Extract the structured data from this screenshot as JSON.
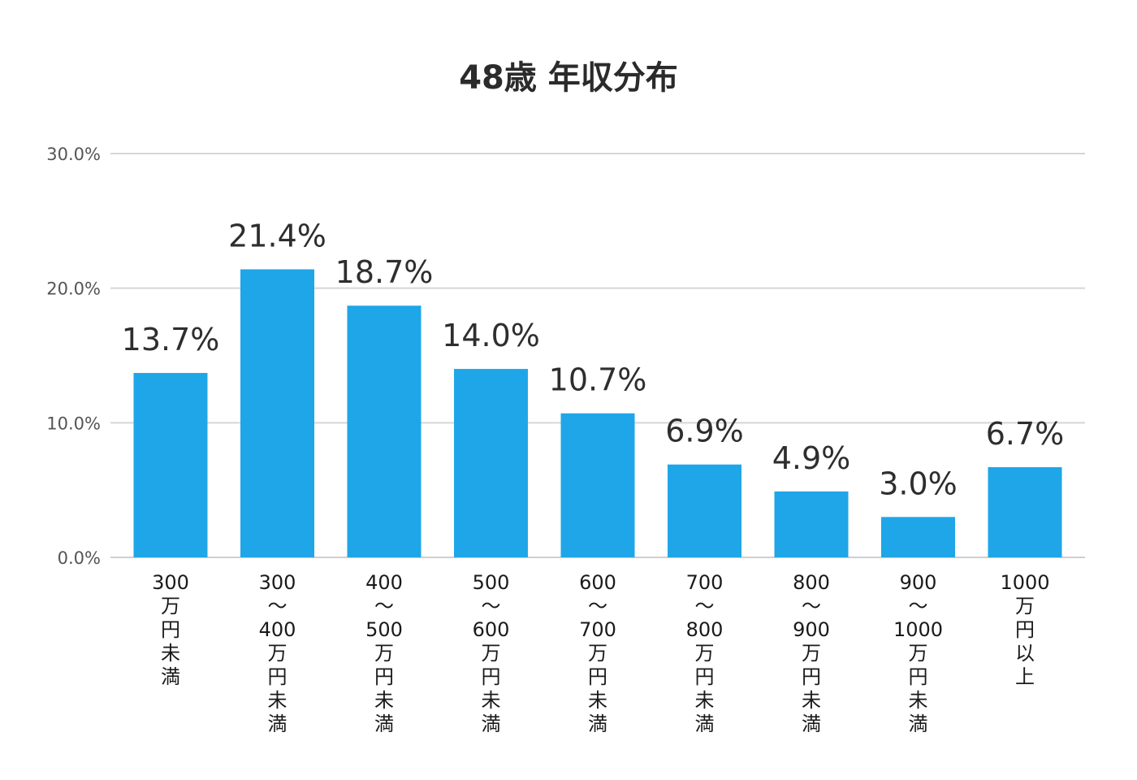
{
  "chart_data": {
    "type": "bar",
    "title": "48歳 年収分布",
    "categories": [
      [
        "300",
        "万",
        "円",
        "未",
        "満"
      ],
      [
        "300",
        "〜",
        "400",
        "万",
        "円",
        "未",
        "満"
      ],
      [
        "400",
        "〜",
        "500",
        "万",
        "円",
        "未",
        "満"
      ],
      [
        "500",
        "〜",
        "600",
        "万",
        "円",
        "未",
        "満"
      ],
      [
        "600",
        "〜",
        "700",
        "万",
        "円",
        "未",
        "満"
      ],
      [
        "700",
        "〜",
        "800",
        "万",
        "円",
        "未",
        "満"
      ],
      [
        "800",
        "〜",
        "900",
        "万",
        "円",
        "未",
        "満"
      ],
      [
        "900",
        "〜",
        "1000",
        "万",
        "円",
        "未",
        "満"
      ],
      [
        "1000",
        "万",
        "円",
        "以",
        "上"
      ]
    ],
    "values": [
      13.7,
      21.4,
      18.7,
      14.0,
      10.7,
      6.9,
      4.9,
      3.0,
      6.7
    ],
    "data_labels": [
      "13.7%",
      "21.4%",
      "18.7%",
      "14.0%",
      "10.7%",
      "6.9%",
      "4.9%",
      "3.0%",
      "6.7%"
    ],
    "y_ticks": [
      0,
      10,
      20,
      30
    ],
    "y_tick_labels": [
      "0.0%",
      "10.0%",
      "20.0%",
      "30.0%"
    ],
    "ylim": [
      0,
      30
    ],
    "grid": true,
    "legend": "none",
    "bar_color": "#1fa6e8"
  }
}
